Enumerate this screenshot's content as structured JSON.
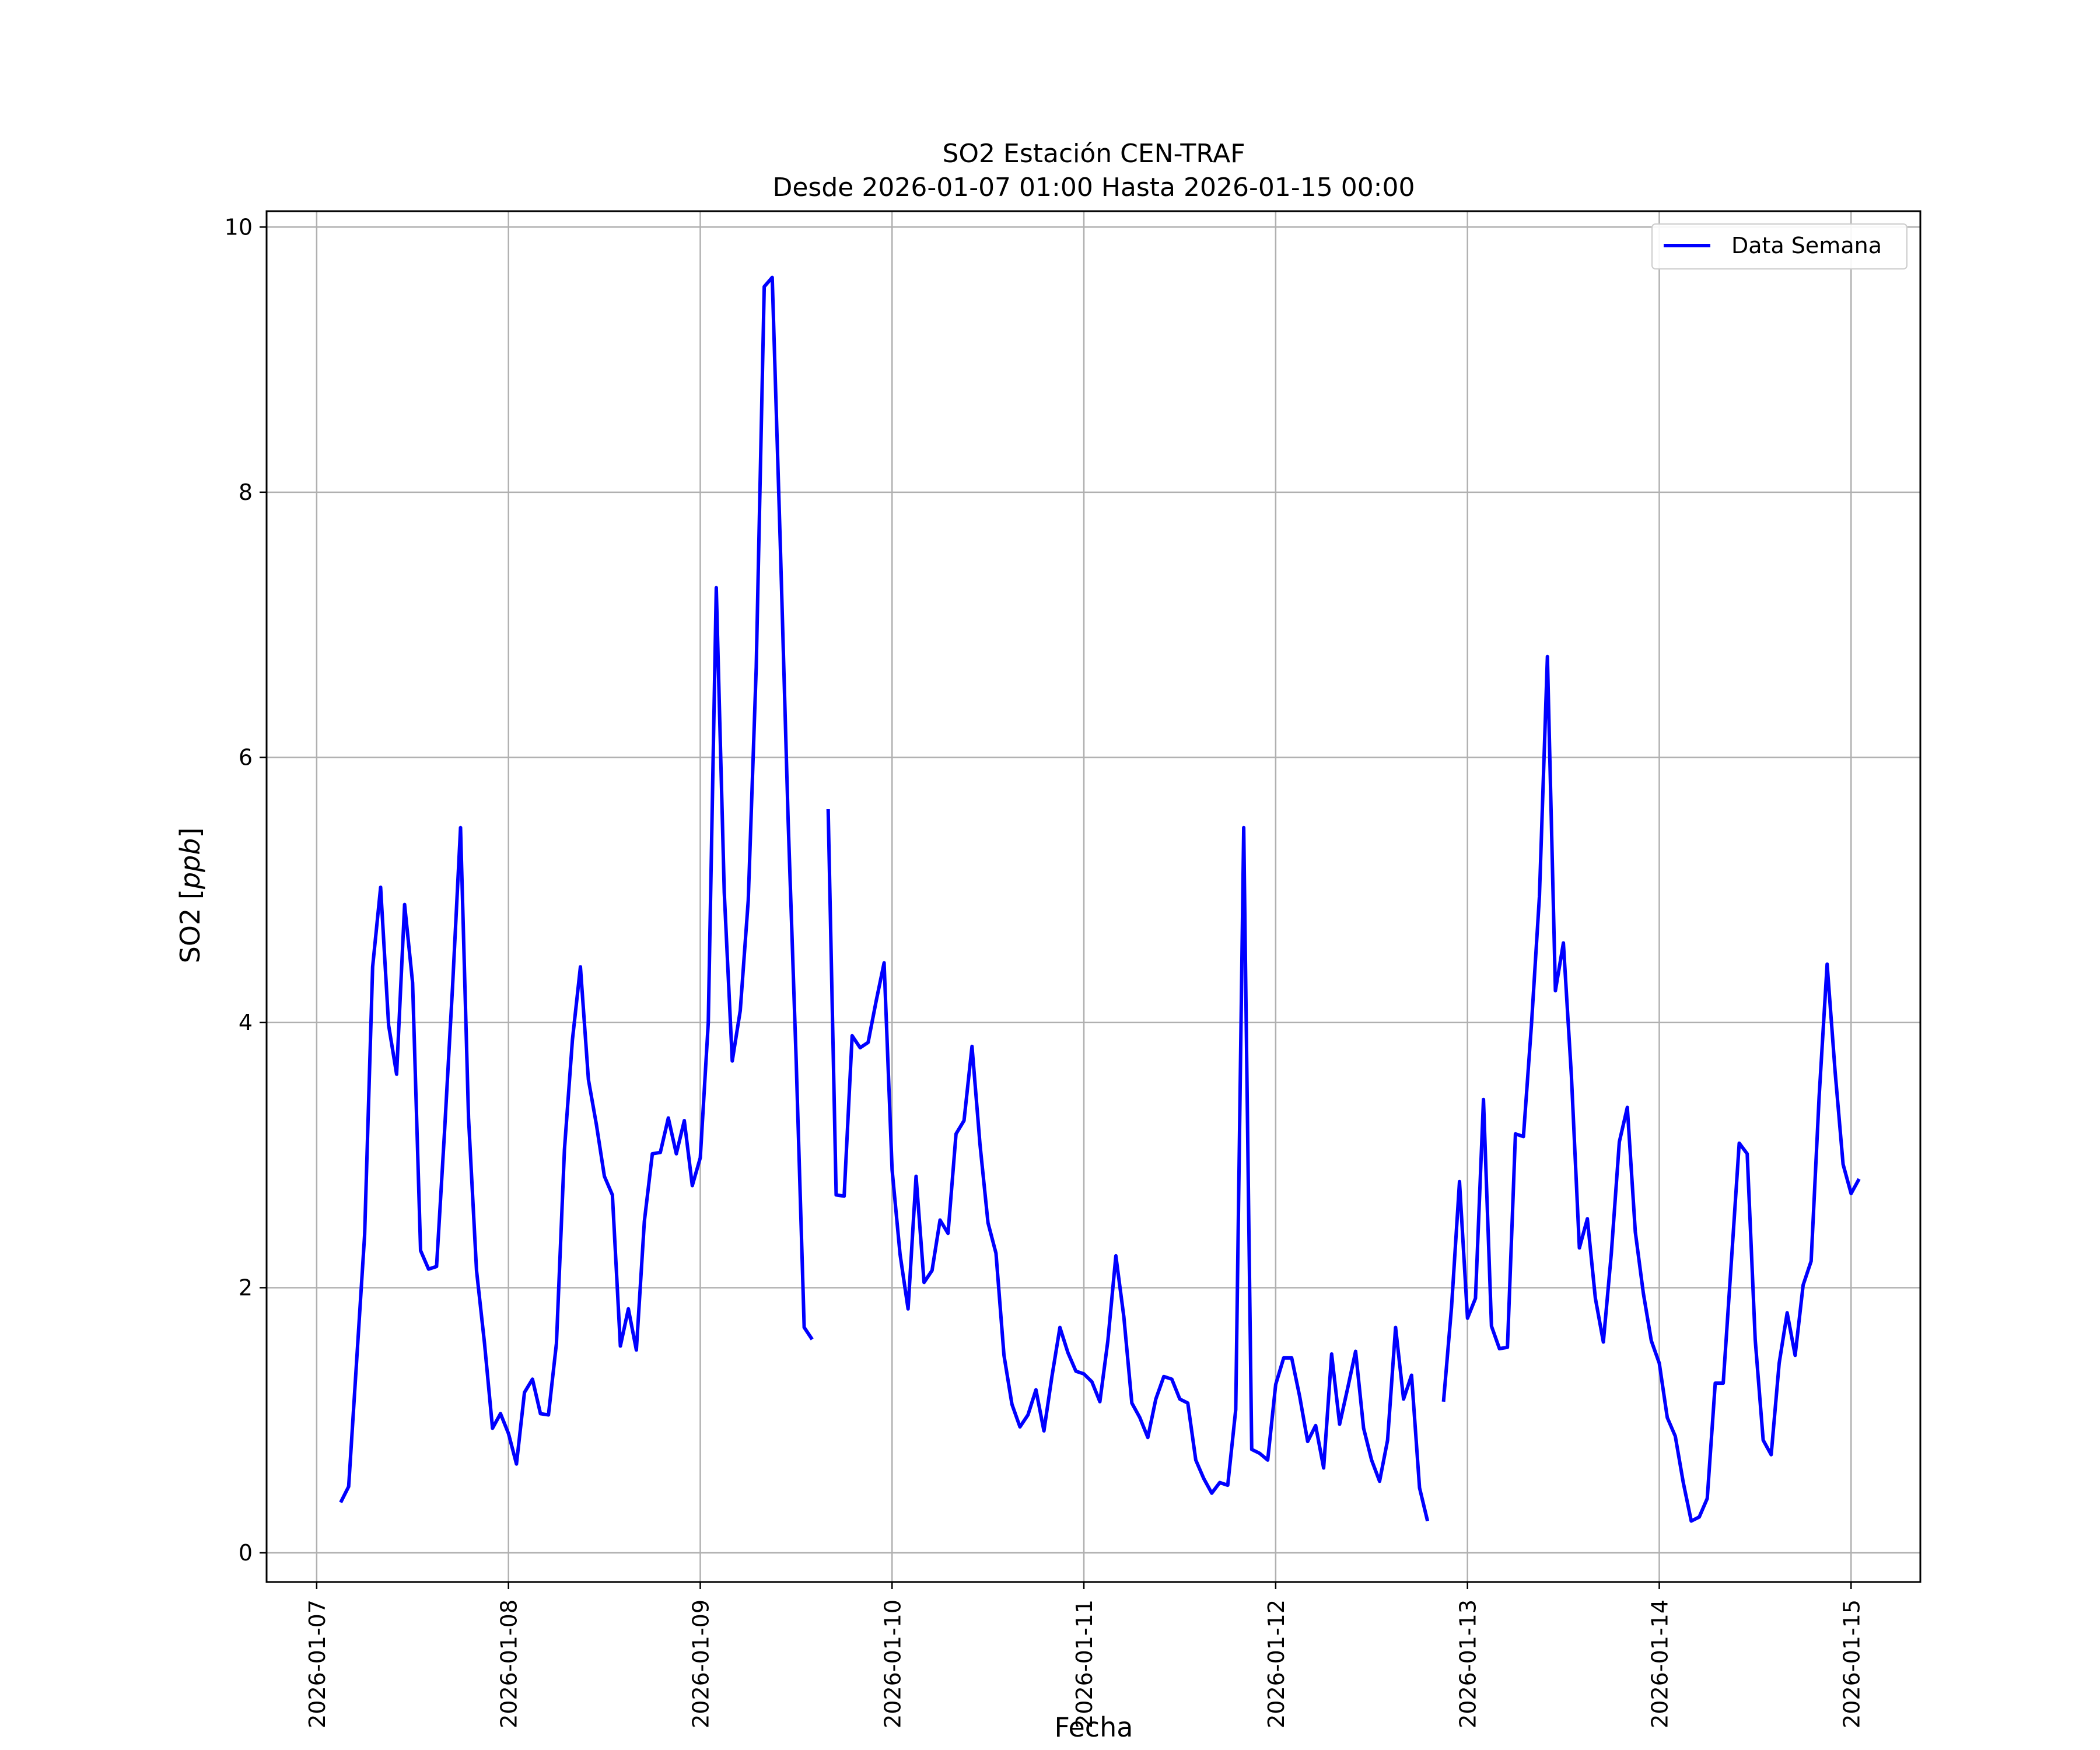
{
  "chart_data": {
    "type": "line",
    "title": "SO2 Estación CEN-TRAF",
    "subtitle": "Desde 2026-01-07 01:00 Hasta 2026-01-15 00:00",
    "xlabel": "Fecha",
    "ylabel": "SO2 [ppb]",
    "ylabel_main": "SO2 [",
    "ylabel_unit": "ppb",
    "ylabel_close": "]",
    "xlim": [
      "2026-01-06 17:44",
      "2026-01-15 08:40"
    ],
    "ylim": [
      -0.22,
      10.12
    ],
    "yticks": [
      0,
      2,
      4,
      6,
      8,
      10
    ],
    "xticks": [
      "2026-01-07",
      "2026-01-08",
      "2026-01-09",
      "2026-01-10",
      "2026-01-11",
      "2026-01-12",
      "2026-01-13",
      "2026-01-14",
      "2026-01-15"
    ],
    "grid": true,
    "legend_position": "top-right",
    "line_color": "#0000ff",
    "series": [
      {
        "name": "Data Semana",
        "color": "#0000ff",
        "x_start": "2026-01-07 03:00",
        "x_step": "1 hour",
        "values": [
          0.38,
          0.5,
          1.45,
          2.4,
          4.42,
          5.02,
          3.98,
          3.61,
          4.89,
          4.3,
          2.28,
          2.14,
          2.16,
          3.18,
          4.27,
          5.47,
          3.28,
          2.13,
          1.58,
          0.94,
          1.05,
          0.9,
          0.67,
          1.21,
          1.31,
          1.05,
          1.04,
          1.58,
          3.04,
          3.87,
          4.42,
          3.57,
          3.23,
          2.84,
          2.7,
          1.56,
          1.84,
          1.53,
          2.5,
          3.01,
          3.02,
          3.28,
          3.01,
          3.26,
          2.77,
          2.98,
          4.0,
          7.28,
          4.98,
          3.71,
          4.09,
          4.92,
          6.68,
          9.55,
          9.62,
          7.63,
          5.51,
          3.71,
          1.7,
          1.61,
          null,
          5.61,
          2.7,
          2.69,
          3.9,
          3.81,
          3.85,
          4.16,
          4.45,
          2.89,
          2.25,
          1.84,
          2.84,
          2.04,
          2.13,
          2.51,
          2.41,
          3.16,
          3.26,
          3.82,
          3.08,
          2.49,
          2.26,
          1.49,
          1.12,
          0.95,
          1.04,
          1.23,
          0.92,
          1.33,
          1.7,
          1.51,
          1.37,
          1.35,
          1.29,
          1.14,
          1.6,
          2.24,
          1.78,
          1.13,
          1.02,
          0.87,
          1.16,
          1.33,
          1.31,
          1.16,
          1.13,
          0.7,
          0.56,
          0.45,
          0.53,
          0.51,
          1.08,
          5.47,
          0.78,
          0.75,
          0.7,
          1.27,
          1.47,
          1.47,
          1.18,
          0.84,
          0.96,
          0.64,
          1.5,
          0.97,
          1.24,
          1.52,
          0.94,
          0.7,
          0.54,
          0.85,
          1.7,
          1.16,
          1.34,
          0.49,
          0.24,
          null,
          1.14,
          1.85,
          2.8,
          1.77,
          1.92,
          3.42,
          1.71,
          1.54,
          1.55,
          3.16,
          3.14,
          3.98,
          4.95,
          6.76,
          4.24,
          4.6,
          3.6,
          2.3,
          2.52,
          1.92,
          1.59,
          2.26,
          3.1,
          3.36,
          2.42,
          1.96,
          1.6,
          1.43,
          1.02,
          0.88,
          0.53,
          0.24,
          0.27,
          0.41,
          1.28,
          1.28,
          2.18,
          3.09,
          3.01,
          1.61,
          0.85,
          0.74,
          1.43,
          1.81,
          1.49,
          2.02,
          2.2,
          3.44,
          4.44,
          3.63,
          2.93,
          2.71,
          2.82
        ]
      }
    ]
  }
}
